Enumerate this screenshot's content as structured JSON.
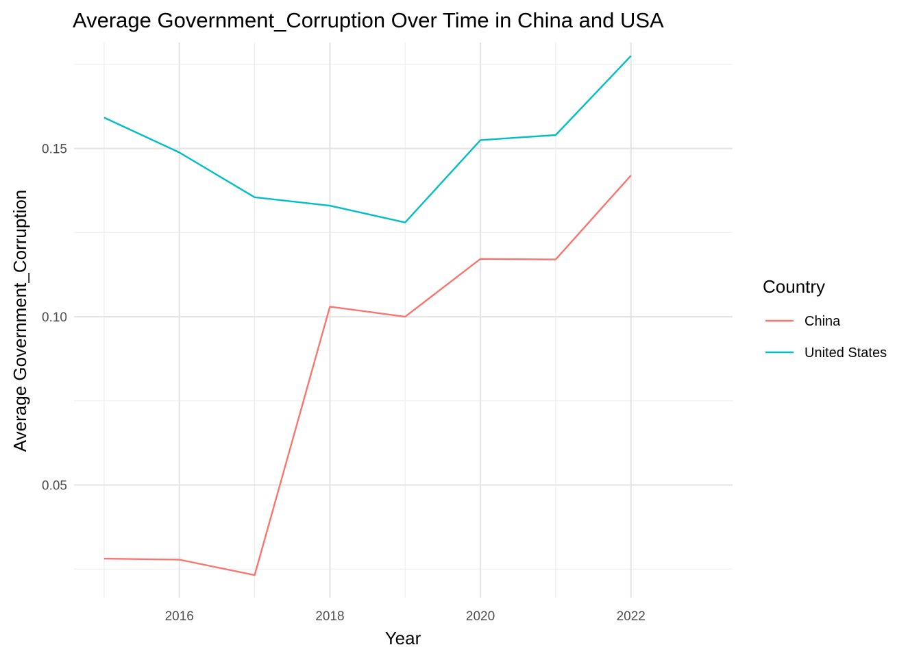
{
  "chart_data": {
    "type": "line",
    "title": "Average Government_Corruption Over Time in China and USA",
    "xlabel": "Year",
    "ylabel": "Average Government_Corruption",
    "x": [
      2015,
      2016,
      2017,
      2018,
      2019,
      2020,
      2021,
      2022
    ],
    "x_ticks": [
      2016,
      2018,
      2020,
      2022
    ],
    "x_tick_labels": [
      "2016",
      "2018",
      "2020",
      "2022"
    ],
    "y_ticks": [
      0.05,
      0.1,
      0.15
    ],
    "y_tick_labels": [
      "0.05",
      "0.10",
      "0.15"
    ],
    "xlim": [
      2014.6,
      2023.35
    ],
    "ylim": [
      0.0165,
      0.1815
    ],
    "grid": true,
    "legend": {
      "title": "Country",
      "placement": "right"
    },
    "series": [
      {
        "name": "China",
        "color": "#F8766D",
        "values": [
          0.0281,
          0.0278,
          0.0232,
          0.103,
          0.1,
          0.1172,
          0.117,
          0.142
        ]
      },
      {
        "name": "United States",
        "color": "#00BFC4",
        "values": [
          0.1592,
          0.1488,
          0.1355,
          0.133,
          0.128,
          0.1525,
          0.154,
          0.1775
        ]
      }
    ]
  }
}
